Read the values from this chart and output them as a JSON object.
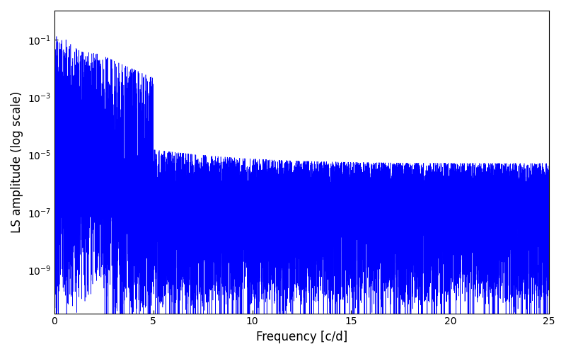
{
  "title": "",
  "xlabel": "Frequency [c/d]",
  "ylabel": "LS amplitude (log scale)",
  "xlim": [
    0,
    25
  ],
  "ylim_log_min": -10.5,
  "ylim_log_max": 0,
  "line_color": "#0000ff",
  "line_width": 0.4,
  "background_color": "#ffffff",
  "figsize": [
    8.0,
    5.0
  ],
  "dpi": 100,
  "seed": 42,
  "n_points": 15000,
  "freq_max": 25.0
}
